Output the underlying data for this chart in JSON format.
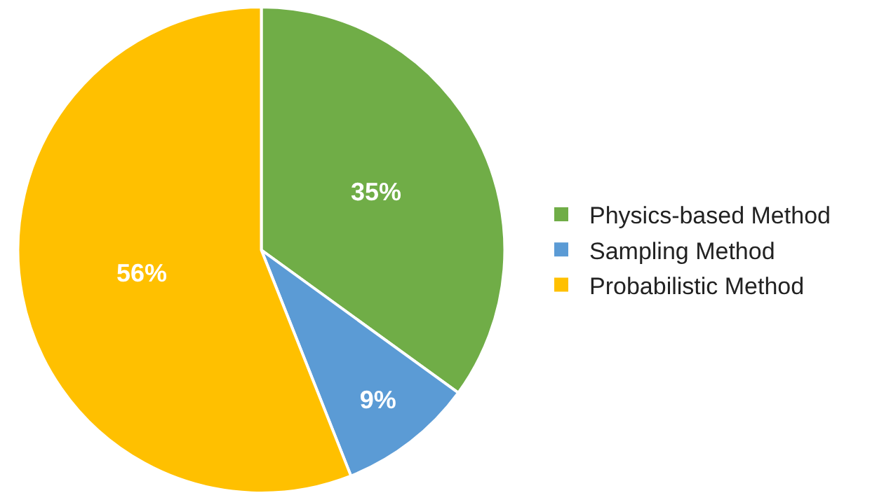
{
  "chart_data": {
    "type": "pie",
    "categories": [
      "Physics-based Method",
      "Sampling Method",
      "Probabilistic Method"
    ],
    "values": [
      35,
      9,
      56
    ],
    "colors": [
      "#70ad47",
      "#5b9bd5",
      "#ffc000"
    ],
    "value_labels": [
      "35%",
      "9%",
      "56%"
    ],
    "legend": "right"
  }
}
